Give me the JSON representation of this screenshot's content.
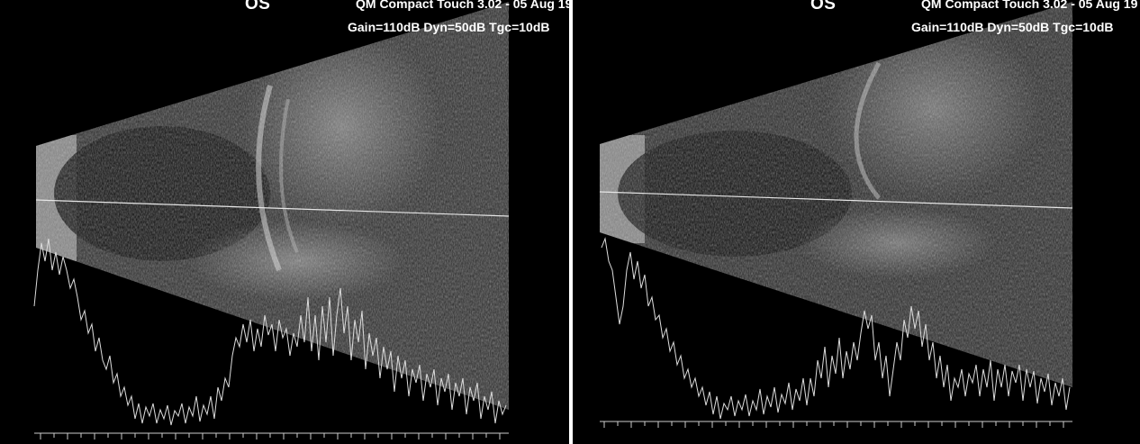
{
  "panels": [
    {
      "eye": "OS",
      "device": "QM Compact Touch 3.02 - 05 Aug 19",
      "settings": "Gain=110dB Dyn=50dB Tgc=10dB"
    },
    {
      "eye": "OS",
      "device": "QM Compact Touch 3.02 - 05 Aug 19",
      "settings": "Gain=110dB Dyn=50dB Tgc=10dB"
    }
  ]
}
